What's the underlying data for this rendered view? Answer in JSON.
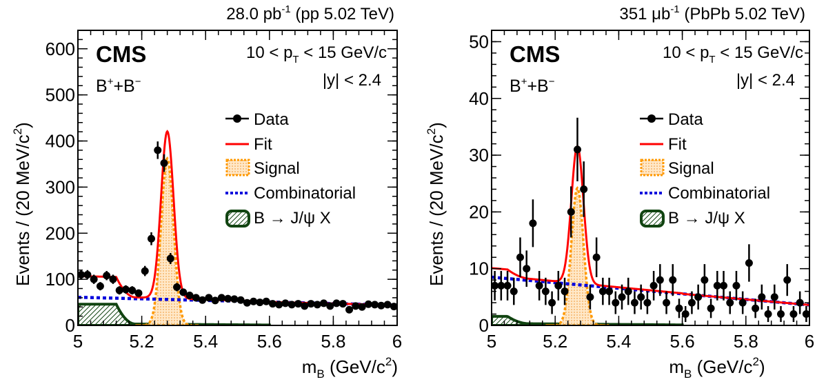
{
  "chart_data": [
    {
      "type": "scatter",
      "lumi": "28.0 pb",
      "lumi_sup": "-1",
      "lumi_tail": " (pp 5.02 TeV)",
      "experiment": "CMS",
      "particle": "B",
      "particle_tail": "+B",
      "cut_pt_left": "10 < p",
      "cut_pt_right": " < 15 GeV/c",
      "cut_y": "|y| < 2.4",
      "xlabel_main": "m",
      "xlabel_sub": "B",
      "xlabel_tail": " (GeV/c",
      "xlabel_end": ")",
      "ylabel": "Events / (20 MeV/c",
      "ylabel_end": ")",
      "xlim": [
        5.0,
        6.0
      ],
      "ylim": [
        0,
        640
      ],
      "xticks": [
        5,
        5.2,
        5.4,
        5.6,
        5.8,
        6
      ],
      "xtick_labels": [
        "5",
        "5.2",
        "5.4",
        "5.6",
        "5.8",
        "6"
      ],
      "yticks": [
        0,
        100,
        200,
        300,
        400,
        500,
        600
      ],
      "ytick_labels": [
        "0",
        "100",
        "200",
        "300",
        "400",
        "500",
        "600"
      ],
      "legend": [
        "Data",
        "Fit",
        "Signal",
        "Combinatorial",
        "B → J/ψ X"
      ],
      "data": {
        "x": [
          5.01,
          5.03,
          5.05,
          5.07,
          5.09,
          5.11,
          5.13,
          5.15,
          5.17,
          5.19,
          5.21,
          5.23,
          5.25,
          5.27,
          5.29,
          5.31,
          5.33,
          5.35,
          5.37,
          5.39,
          5.41,
          5.43,
          5.45,
          5.47,
          5.49,
          5.51,
          5.53,
          5.55,
          5.57,
          5.59,
          5.61,
          5.63,
          5.65,
          5.67,
          5.69,
          5.71,
          5.73,
          5.75,
          5.77,
          5.79,
          5.81,
          5.83,
          5.85,
          5.87,
          5.89,
          5.91,
          5.93,
          5.95,
          5.97,
          5.99
        ],
        "y": [
          110,
          110,
          100,
          85,
          108,
          100,
          76,
          78,
          76,
          70,
          118,
          188,
          380,
          352,
          145,
          83,
          72,
          65,
          60,
          55,
          60,
          54,
          60,
          58,
          57,
          55,
          49,
          52,
          50,
          52,
          47,
          45,
          48,
          45,
          47,
          42,
          47,
          45,
          48,
          42,
          48,
          47,
          34,
          42,
          40,
          46,
          45,
          43,
          45,
          41
        ],
        "err": [
          10,
          10,
          10,
          9,
          10,
          10,
          9,
          9,
          9,
          8,
          11,
          14,
          19,
          19,
          12,
          9,
          8,
          8,
          8,
          7,
          8,
          7,
          8,
          8,
          8,
          7,
          7,
          7,
          7,
          7,
          7,
          7,
          7,
          7,
          7,
          6,
          7,
          7,
          7,
          6,
          7,
          7,
          6,
          6,
          6,
          7,
          7,
          7,
          7,
          6
        ]
      },
      "fit_model": {
        "signal_mean": 5.28,
        "signal_sigma": 0.0195,
        "signal_peak": 362,
        "comb_at_5": 61,
        "comb_at_6": 44,
        "jpsix_level": 46,
        "jpsix_edge": 5.12,
        "jpsix_end": 5.18,
        "jpsix_tail_x": 5.6,
        "jpsix_tail_level": 3
      }
    },
    {
      "type": "scatter",
      "lumi": "351 μb",
      "lumi_sup": "-1",
      "lumi_tail": " (PbPb 5.02 TeV)",
      "experiment": "CMS",
      "particle": "B",
      "particle_tail": "+B",
      "cut_pt_left": "10 < p",
      "cut_pt_right": " < 15 GeV/c",
      "cut_y": "|y| < 2.4",
      "xlabel_main": "m",
      "xlabel_sub": "B",
      "xlabel_tail": " (GeV/c",
      "xlabel_end": ")",
      "ylabel": "Events / (20 MeV/c",
      "ylabel_end": ")",
      "xlim": [
        5.0,
        6.0
      ],
      "ylim": [
        0,
        52
      ],
      "xticks": [
        5,
        5.2,
        5.4,
        5.6,
        5.8,
        6
      ],
      "xtick_labels": [
        "5",
        "5.2",
        "5.4",
        "5.6",
        "5.8",
        "6"
      ],
      "yticks": [
        0,
        10,
        20,
        30,
        40,
        50
      ],
      "ytick_labels": [
        "0",
        "10",
        "20",
        "30",
        "40",
        "50"
      ],
      "legend": [
        "Data",
        "Fit",
        "Signal",
        "Combinatorial",
        "B → J/ψ X"
      ],
      "data": {
        "x": [
          5.01,
          5.03,
          5.05,
          5.07,
          5.09,
          5.11,
          5.13,
          5.15,
          5.17,
          5.19,
          5.21,
          5.23,
          5.25,
          5.27,
          5.29,
          5.31,
          5.33,
          5.35,
          5.37,
          5.39,
          5.41,
          5.43,
          5.45,
          5.47,
          5.49,
          5.51,
          5.53,
          5.55,
          5.57,
          5.59,
          5.61,
          5.63,
          5.65,
          5.67,
          5.69,
          5.71,
          5.73,
          5.75,
          5.77,
          5.79,
          5.81,
          5.83,
          5.85,
          5.87,
          5.89,
          5.91,
          5.93,
          5.95,
          5.97,
          5.99
        ],
        "y": [
          7,
          7,
          7,
          6,
          12,
          10,
          18,
          7,
          6,
          4,
          7,
          6,
          20,
          31,
          24,
          5,
          12,
          6,
          6,
          4,
          5,
          6,
          4,
          5,
          4,
          7,
          8,
          4,
          8,
          3,
          2,
          4,
          5,
          8,
          3,
          7,
          7,
          4,
          7,
          4,
          11,
          3,
          5,
          2,
          5,
          2,
          8,
          2,
          4,
          2
        ],
        "err": [
          2.6,
          2.6,
          2.6,
          2.4,
          3.5,
          3.2,
          4.2,
          2.6,
          2.4,
          2.0,
          2.6,
          2.4,
          4.5,
          5.6,
          4.9,
          2.2,
          3.5,
          2.4,
          2.4,
          2.0,
          2.2,
          2.4,
          2.0,
          2.2,
          2.0,
          2.6,
          2.8,
          2.0,
          2.8,
          1.7,
          1.4,
          2.0,
          2.2,
          2.8,
          1.7,
          2.6,
          2.6,
          2.0,
          2.6,
          2.0,
          3.3,
          1.7,
          2.2,
          1.4,
          2.2,
          1.4,
          2.8,
          1.4,
          2.0,
          1.4
        ]
      },
      "fit_model": {
        "signal_mean": 5.27,
        "signal_sigma": 0.019,
        "signal_peak": 24.2,
        "comb_at_5": 8.5,
        "comb_at_6": 3.6,
        "jpsix_level": 1.6,
        "jpsix_edge": 5.05,
        "jpsix_end": 5.12,
        "jpsix_tail_x": 5.6,
        "jpsix_tail_level": 0.3
      }
    }
  ],
  "colors": {
    "data": "#000000",
    "fit": "#ff0000",
    "signal_line": "#ff9900",
    "signal_fill": "#ffd9a8",
    "combinatorial": "#0000dd",
    "jpsix": "#114411"
  }
}
